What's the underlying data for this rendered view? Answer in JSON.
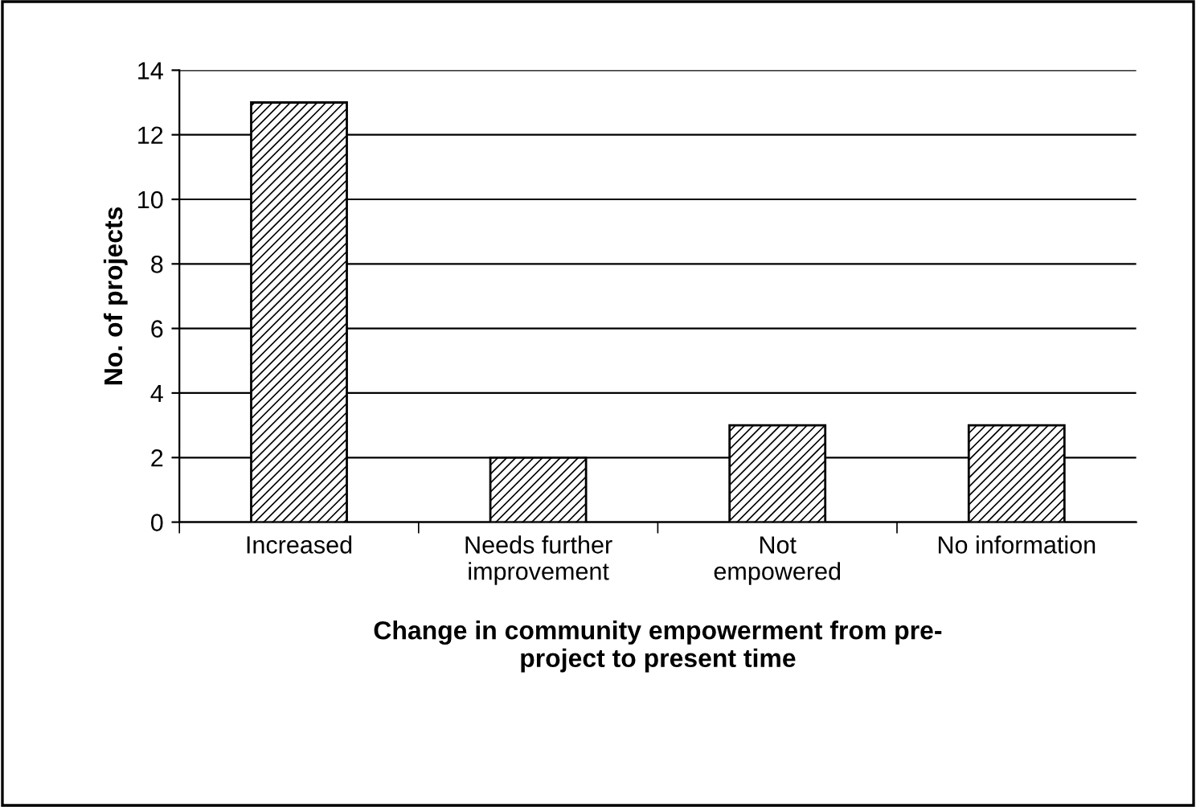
{
  "chart_data": {
    "type": "bar",
    "categories": [
      "Increased",
      "Needs further\nimprovement",
      "Not\nempowered",
      "No information"
    ],
    "values": [
      13,
      2,
      3,
      3
    ],
    "color": "#000000",
    "xlabel": "Change in community empowerment from pre-\nproject to present time",
    "ylabel": "No. of projects",
    "ylim": [
      0,
      14
    ],
    "yticks": [
      0,
      2,
      4,
      6,
      8,
      10,
      12,
      14
    ],
    "grid": "y",
    "legend": false
  }
}
